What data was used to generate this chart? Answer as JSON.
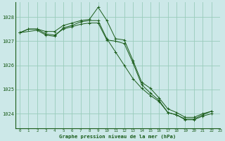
{
  "title": "Graphe pression niveau de la mer (hPa)",
  "bg_color": "#cce8e8",
  "grid_color": "#99ccbb",
  "line_color": "#1a5c1a",
  "xlim": [
    -0.5,
    23
  ],
  "ylim": [
    1023.4,
    1028.6
  ],
  "yticks": [
    1024,
    1025,
    1026,
    1027,
    1028
  ],
  "xticks": [
    0,
    1,
    2,
    3,
    4,
    5,
    6,
    7,
    8,
    9,
    10,
    11,
    12,
    13,
    14,
    15,
    16,
    17,
    18,
    19,
    20,
    21,
    22,
    23
  ],
  "series": [
    {
      "x": [
        0,
        1,
        2,
        3,
        4,
        5,
        6,
        7,
        8,
        9,
        10,
        11,
        12,
        13,
        14,
        15,
        16,
        17,
        18,
        19,
        20,
        21,
        22
      ],
      "y": [
        1027.35,
        1027.5,
        1027.5,
        1027.4,
        1027.4,
        1027.65,
        1027.75,
        1027.85,
        1027.9,
        1028.4,
        1027.85,
        1027.1,
        1027.05,
        1026.2,
        1025.3,
        1025.05,
        1024.65,
        1024.2,
        1024.05,
        1023.85,
        1023.85,
        1024.0,
        1024.1
      ]
    },
    {
      "x": [
        0,
        1,
        2,
        3,
        4,
        5,
        6,
        7,
        8,
        9,
        10,
        11,
        12,
        13,
        14,
        15,
        16,
        17,
        18,
        19,
        20,
        21,
        22
      ],
      "y": [
        1027.35,
        1027.5,
        1027.5,
        1027.3,
        1027.25,
        1027.5,
        1027.6,
        1027.7,
        1027.75,
        1027.75,
        1027.05,
        1027.0,
        1026.9,
        1026.1,
        1025.2,
        1024.85,
        1024.55,
        1024.05,
        1023.95,
        1023.75,
        1023.75,
        1023.9,
        1024.0
      ]
    },
    {
      "x": [
        0,
        2,
        3,
        4,
        5,
        6,
        7,
        8,
        9,
        10,
        11,
        12,
        13,
        14,
        15,
        16,
        17,
        18,
        19,
        20,
        21,
        22
      ],
      "y": [
        1027.35,
        1027.45,
        1027.25,
        1027.2,
        1027.55,
        1027.65,
        1027.8,
        1027.85,
        1027.85,
        1027.1,
        1026.55,
        1026.0,
        1025.45,
        1025.05,
        1024.75,
        1024.5,
        1024.05,
        1023.95,
        1023.78,
        1023.78,
        1023.95,
        1024.1
      ]
    }
  ]
}
